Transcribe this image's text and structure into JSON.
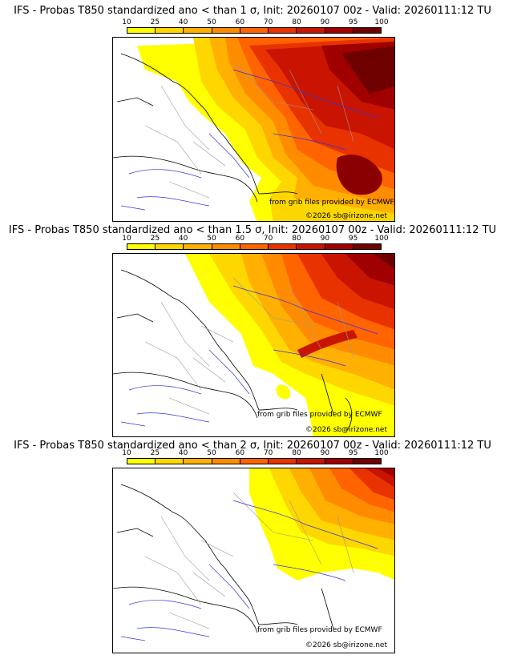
{
  "panels": [
    {
      "title": "IFS - Probas T850  standardized ano < than 1 σ, Init: 20260107 00z - Valid: 20260111:12 TU",
      "threshold_sigma": 1
    },
    {
      "title": "IFS - Probas T850  standardized ano < than 1.5 σ, Init: 20260107 00z - Valid: 20260111:12 TU",
      "threshold_sigma": 1.5
    },
    {
      "title": "IFS - Probas T850  standardized ano < than 2 σ, Init: 20260107 00z - Valid: 20260111:12 TU",
      "threshold_sigma": 2
    }
  ],
  "scale": {
    "labels": [
      "10",
      "25",
      "40",
      "50",
      "60",
      "70",
      "80",
      "90",
      "95",
      "100"
    ],
    "colors": [
      "#ffff00",
      "#ffd700",
      "#ffb000",
      "#ff8c00",
      "#ff6400",
      "#e83200",
      "#c81400",
      "#a00000",
      "#6e0000"
    ]
  },
  "credits": {
    "source": "from grib files provided by ECMWF",
    "copyright": "©2026 sb@irizone.net"
  },
  "colors": {
    "land_outline": "#000000",
    "rivers": "#3333dd",
    "borders": "#999999"
  }
}
